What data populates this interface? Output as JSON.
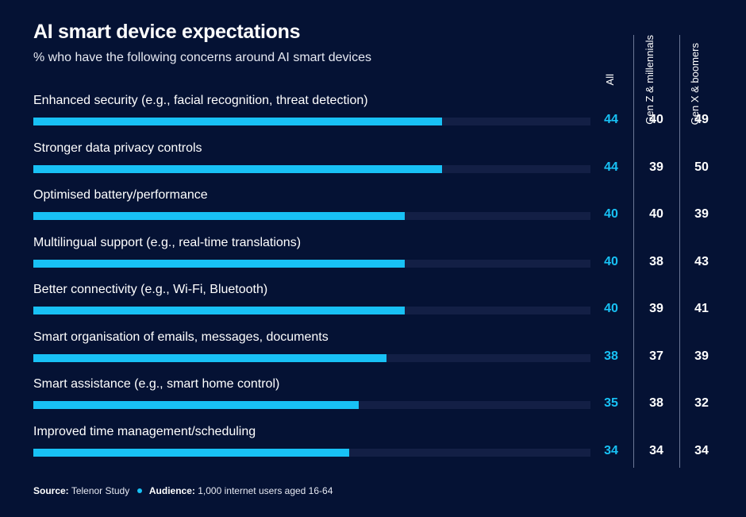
{
  "chart_data": {
    "type": "bar",
    "orientation": "horizontal",
    "title": "AI smart device expectations",
    "subtitle": "% who have the following concerns around AI smart devices",
    "categories": [
      "Enhanced security (e.g., facial recognition, threat detection)",
      "Stronger data privacy controls",
      "Optimised battery/performance",
      "Multilingual support (e.g., real-time translations)",
      "Better connectivity (e.g., Wi-Fi, Bluetooth)",
      "Smart organisation of emails, messages, documents",
      "Smart assistance (e.g., smart home control)",
      "Improved time management/scheduling"
    ],
    "series": [
      {
        "name": "All",
        "values": [
          44,
          44,
          40,
          40,
          40,
          38,
          35,
          34
        ]
      },
      {
        "name": "Gen Z & millennials",
        "values": [
          40,
          39,
          40,
          38,
          39,
          37,
          38,
          34
        ]
      },
      {
        "name": "Gen X & boomers",
        "values": [
          49,
          50,
          39,
          43,
          41,
          39,
          32,
          34
        ]
      }
    ],
    "xlim": [
      0,
      60
    ],
    "grid": false,
    "legend": "none",
    "colors": {
      "background": "#051234",
      "bar": "#18c1f5",
      "track": "#131f45",
      "all_value": "#18c1f5"
    }
  },
  "footer": {
    "source_label": "Source:",
    "source_value": "Telenor Study",
    "audience_label": "Audience:",
    "audience_value": "1,000 internet users aged 16-64"
  }
}
